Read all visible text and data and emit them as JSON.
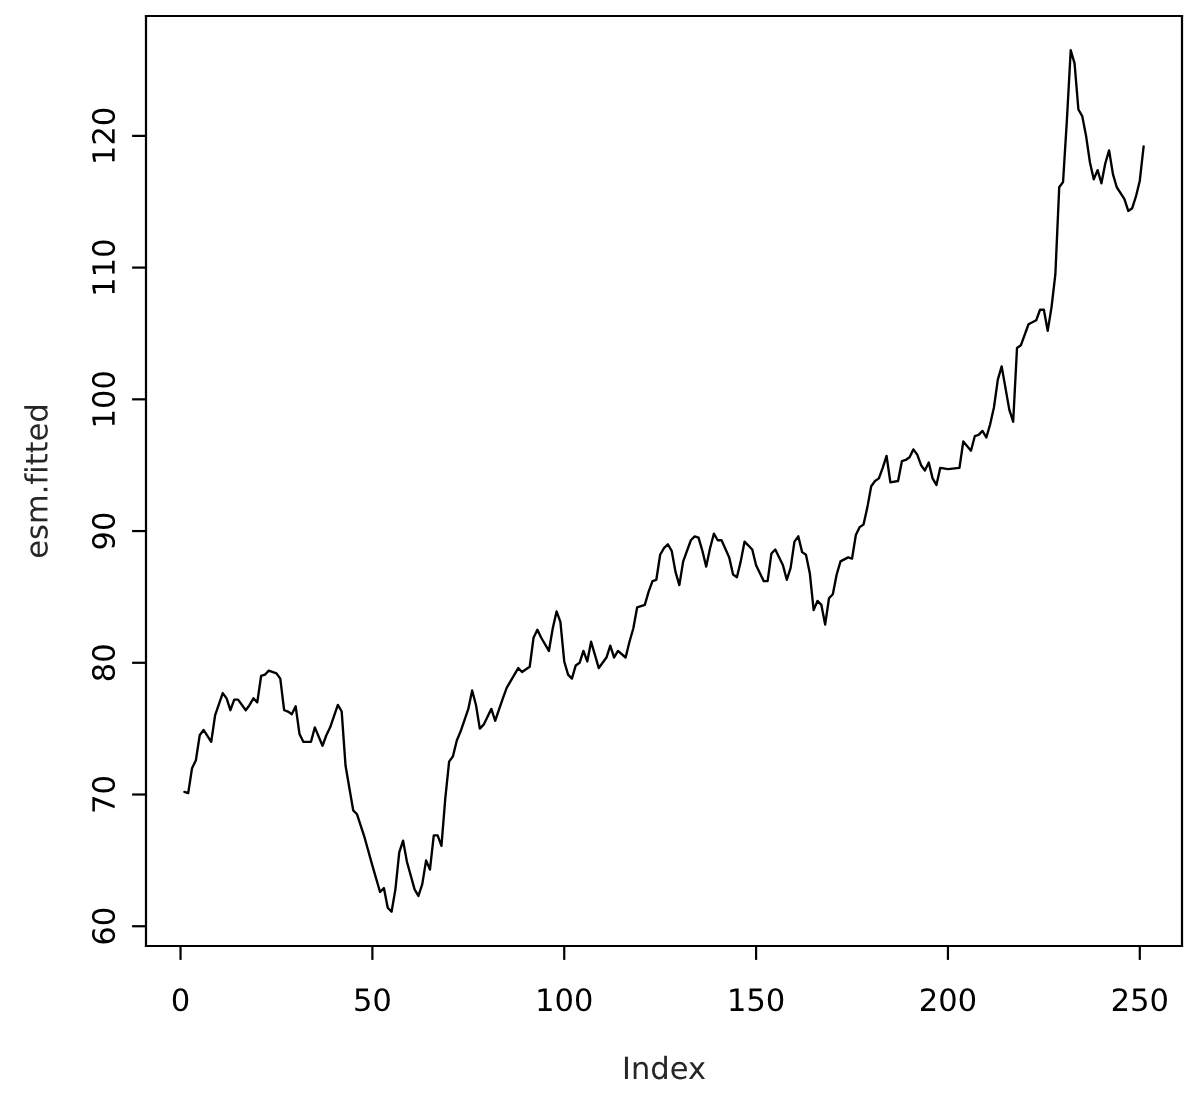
{
  "chart_data": {
    "type": "line",
    "xlabel": "Index",
    "ylabel": "esm.fitted",
    "x": [
      1,
      2,
      3,
      4,
      5,
      6,
      8,
      9,
      11,
      12,
      13,
      14,
      15,
      17,
      18,
      19,
      20,
      21,
      22,
      23,
      25,
      26,
      27,
      28,
      29,
      30,
      31,
      32,
      34,
      35,
      37,
      38,
      39,
      41,
      42,
      43,
      44,
      45,
      46,
      48,
      50,
      52,
      53,
      54,
      55,
      56,
      57,
      58,
      59,
      61,
      62,
      63,
      64,
      65,
      66,
      67,
      68,
      69,
      70,
      71,
      72,
      73,
      75,
      76,
      77,
      78,
      79,
      81,
      82,
      84,
      85,
      88,
      89,
      91,
      92,
      93,
      94,
      96,
      97,
      98,
      99,
      100,
      101,
      102,
      103,
      104,
      105,
      106,
      107,
      108,
      109,
      111,
      112,
      113,
      114,
      116,
      117,
      118,
      119,
      121,
      122,
      123,
      124,
      125,
      126,
      127,
      128,
      129,
      130,
      131,
      133,
      134,
      135,
      136,
      137,
      138,
      139,
      140,
      141,
      143,
      144,
      145,
      146,
      147,
      149,
      150,
      152,
      153,
      154,
      155,
      157,
      158,
      159,
      160,
      161,
      162,
      163,
      164,
      165,
      166,
      167,
      168,
      169,
      170,
      171,
      172,
      174,
      175,
      176,
      177,
      178,
      179,
      180,
      181,
      182,
      183,
      184,
      185,
      187,
      188,
      189,
      190,
      191,
      192,
      193,
      194,
      195,
      196,
      197,
      198,
      200,
      203,
      204,
      206,
      207,
      208,
      209,
      210,
      211,
      212,
      213,
      214,
      216,
      217,
      218,
      219,
      221,
      223,
      224,
      225,
      226,
      227,
      228,
      229,
      230,
      231,
      232,
      233,
      234,
      235,
      236,
      237,
      238,
      239,
      240,
      241,
      242,
      243,
      244,
      246,
      247,
      248,
      249,
      250,
      251
    ],
    "series": [
      {
        "color": "#000000",
        "values": [
          70.2,
          70.1,
          72.0,
          72.6,
          74.5,
          74.9,
          74.0,
          76.0,
          77.7,
          77.3,
          76.4,
          77.2,
          77.2,
          76.4,
          76.8,
          77.3,
          77.0,
          79.0,
          79.1,
          79.4,
          79.2,
          78.8,
          76.4,
          76.3,
          76.1,
          76.7,
          74.6,
          74.0,
          74.0,
          75.1,
          73.7,
          74.5,
          75.1,
          76.8,
          76.3,
          72.2,
          70.5,
          68.8,
          68.5,
          66.7,
          64.6,
          62.6,
          62.9,
          61.4,
          61.1,
          62.8,
          65.6,
          66.5,
          64.9,
          62.8,
          62.3,
          63.2,
          65.0,
          64.3,
          66.9,
          66.9,
          66.1,
          69.7,
          72.5,
          72.9,
          74.1,
          74.8,
          76.5,
          77.9,
          76.8,
          75.0,
          75.3,
          76.5,
          75.6,
          77.3,
          78.1,
          79.6,
          79.3,
          79.7,
          81.9,
          82.5,
          81.9,
          80.9,
          82.6,
          83.9,
          83.1,
          80.1,
          79.1,
          78.8,
          79.8,
          80.0,
          80.9,
          80.1,
          81.6,
          80.6,
          79.6,
          80.4,
          81.3,
          80.4,
          80.9,
          80.4,
          81.6,
          82.6,
          84.2,
          84.4,
          85.4,
          86.2,
          86.3,
          88.2,
          88.7,
          89.0,
          88.5,
          86.9,
          85.9,
          87.7,
          89.3,
          89.6,
          89.5,
          88.5,
          87.3,
          88.7,
          89.8,
          89.3,
          89.3,
          88.0,
          86.7,
          86.5,
          87.7,
          89.2,
          88.6,
          87.4,
          86.2,
          86.2,
          88.3,
          88.6,
          87.4,
          86.3,
          87.2,
          89.2,
          89.6,
          88.4,
          88.2,
          86.8,
          84.0,
          84.7,
          84.4,
          82.9,
          84.9,
          85.2,
          86.7,
          87.7,
          88.0,
          87.9,
          89.7,
          90.3,
          90.5,
          91.8,
          93.4,
          93.8,
          94.0,
          94.8,
          95.7,
          93.7,
          93.8,
          95.3,
          95.4,
          95.6,
          96.2,
          95.8,
          95.0,
          94.6,
          95.2,
          94.0,
          93.5,
          94.8,
          94.7,
          94.8,
          96.8,
          96.1,
          97.2,
          97.3,
          97.6,
          97.1,
          98.1,
          99.4,
          101.5,
          102.5,
          99.2,
          98.3,
          103.9,
          104.1,
          105.7,
          106.0,
          106.8,
          106.8,
          105.2,
          107.0,
          109.5,
          116.1,
          116.5,
          121.2,
          126.5,
          125.5,
          122.0,
          121.5,
          120.0,
          118.0,
          116.7,
          117.4,
          116.4,
          117.9,
          118.9,
          117.1,
          116.1,
          115.2,
          114.3,
          114.5,
          115.4,
          116.6,
          119.2
        ]
      }
    ],
    "xlim": [
      -9,
      261
    ],
    "ylim": [
      58.5,
      129.1
    ],
    "xticks": [
      0,
      50,
      100,
      150,
      200,
      250
    ],
    "yticks": [
      60,
      70,
      80,
      90,
      100,
      110,
      120
    ],
    "line_style": "solid"
  }
}
